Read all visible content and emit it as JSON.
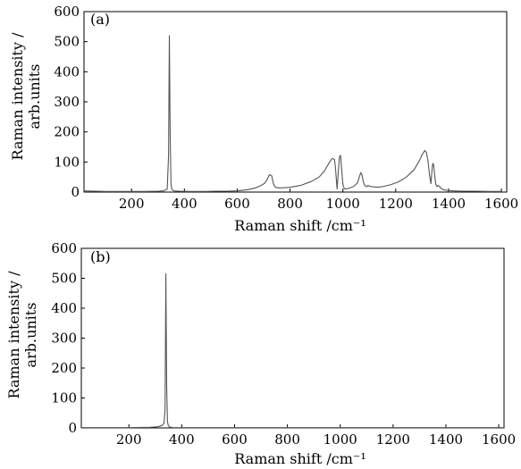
{
  "chart_data": [
    {
      "type": "line",
      "panel_label": "(a)",
      "xlabel": "Raman shift /cm⁻¹",
      "ylabel_line1": "Raman intensity /",
      "ylabel_line2": "arb.units",
      "xlim": [
        20,
        1620
      ],
      "ylim": [
        0,
        600
      ],
      "xticks": [
        200,
        400,
        600,
        800,
        1000,
        1200,
        1400,
        1600
      ],
      "yticks": [
        0,
        100,
        200,
        300,
        400,
        500,
        600
      ],
      "grid": false,
      "line_color": "#555555",
      "series": [
        {
          "x": [
            20,
            60,
            100,
            150,
            200,
            250,
            300,
            320,
            335,
            340,
            343,
            346,
            349,
            352,
            356,
            362,
            380,
            420,
            480,
            520,
            560,
            600,
            640,
            670,
            690,
            705,
            715,
            722,
            730,
            737,
            742,
            748,
            755,
            770,
            800,
            840,
            880,
            910,
            930,
            950,
            960,
            968,
            972,
            978,
            982,
            987,
            991,
            995,
            1000,
            1005,
            1010,
            1020,
            1040,
            1055,
            1062,
            1068,
            1072,
            1077,
            1082,
            1090,
            1095,
            1100,
            1110,
            1130,
            1150,
            1180,
            1210,
            1240,
            1270,
            1290,
            1300,
            1310,
            1316,
            1322,
            1328,
            1333,
            1337,
            1340,
            1343,
            1347,
            1351,
            1356,
            1360,
            1366,
            1372,
            1380,
            1390,
            1400,
            1420,
            1450,
            1500,
            1550,
            1580,
            1600
          ],
          "y": [
            4,
            3,
            2,
            2,
            2,
            2,
            3,
            4,
            10,
            120,
            520,
            200,
            30,
            12,
            6,
            4,
            3,
            2,
            2,
            3,
            3,
            4,
            8,
            14,
            22,
            30,
            45,
            58,
            55,
            28,
            18,
            15,
            14,
            14,
            16,
            22,
            35,
            50,
            70,
            100,
            112,
            108,
            80,
            10,
            60,
            118,
            122,
            80,
            25,
            12,
            10,
            12,
            18,
            30,
            50,
            65,
            58,
            35,
            22,
            18,
            22,
            20,
            18,
            16,
            18,
            24,
            34,
            50,
            75,
            105,
            125,
            138,
            132,
            105,
            55,
            28,
            70,
            95,
            92,
            60,
            28,
            18,
            22,
            18,
            12,
            8,
            6,
            5,
            4,
            3,
            3,
            2,
            2,
            2
          ]
        }
      ]
    },
    {
      "type": "line",
      "panel_label": "(b)",
      "xlabel": "Raman shift /cm⁻¹",
      "ylabel_line1": "Raman intensity /",
      "ylabel_line2": "arb.units",
      "xlim": [
        20,
        1620
      ],
      "ylim": [
        0,
        600
      ],
      "xticks": [
        200,
        400,
        600,
        800,
        1000,
        1200,
        1400,
        1600
      ],
      "yticks": [
        0,
        100,
        200,
        300,
        400,
        500,
        600
      ],
      "grid": false,
      "line_color": "#555555",
      "series": [
        {
          "x": [
            20,
            100,
            200,
            280,
            310,
            325,
            333,
            337,
            340,
            343,
            346,
            349,
            353,
            358,
            370,
            400,
            500,
            700,
            900,
            1100,
            1300,
            1500,
            1620
          ],
          "y": [
            1,
            1,
            1,
            2,
            4,
            8,
            15,
            60,
            515,
            140,
            20,
            8,
            4,
            2,
            1,
            1,
            1,
            1,
            1,
            1,
            1,
            1,
            1
          ]
        }
      ]
    }
  ]
}
